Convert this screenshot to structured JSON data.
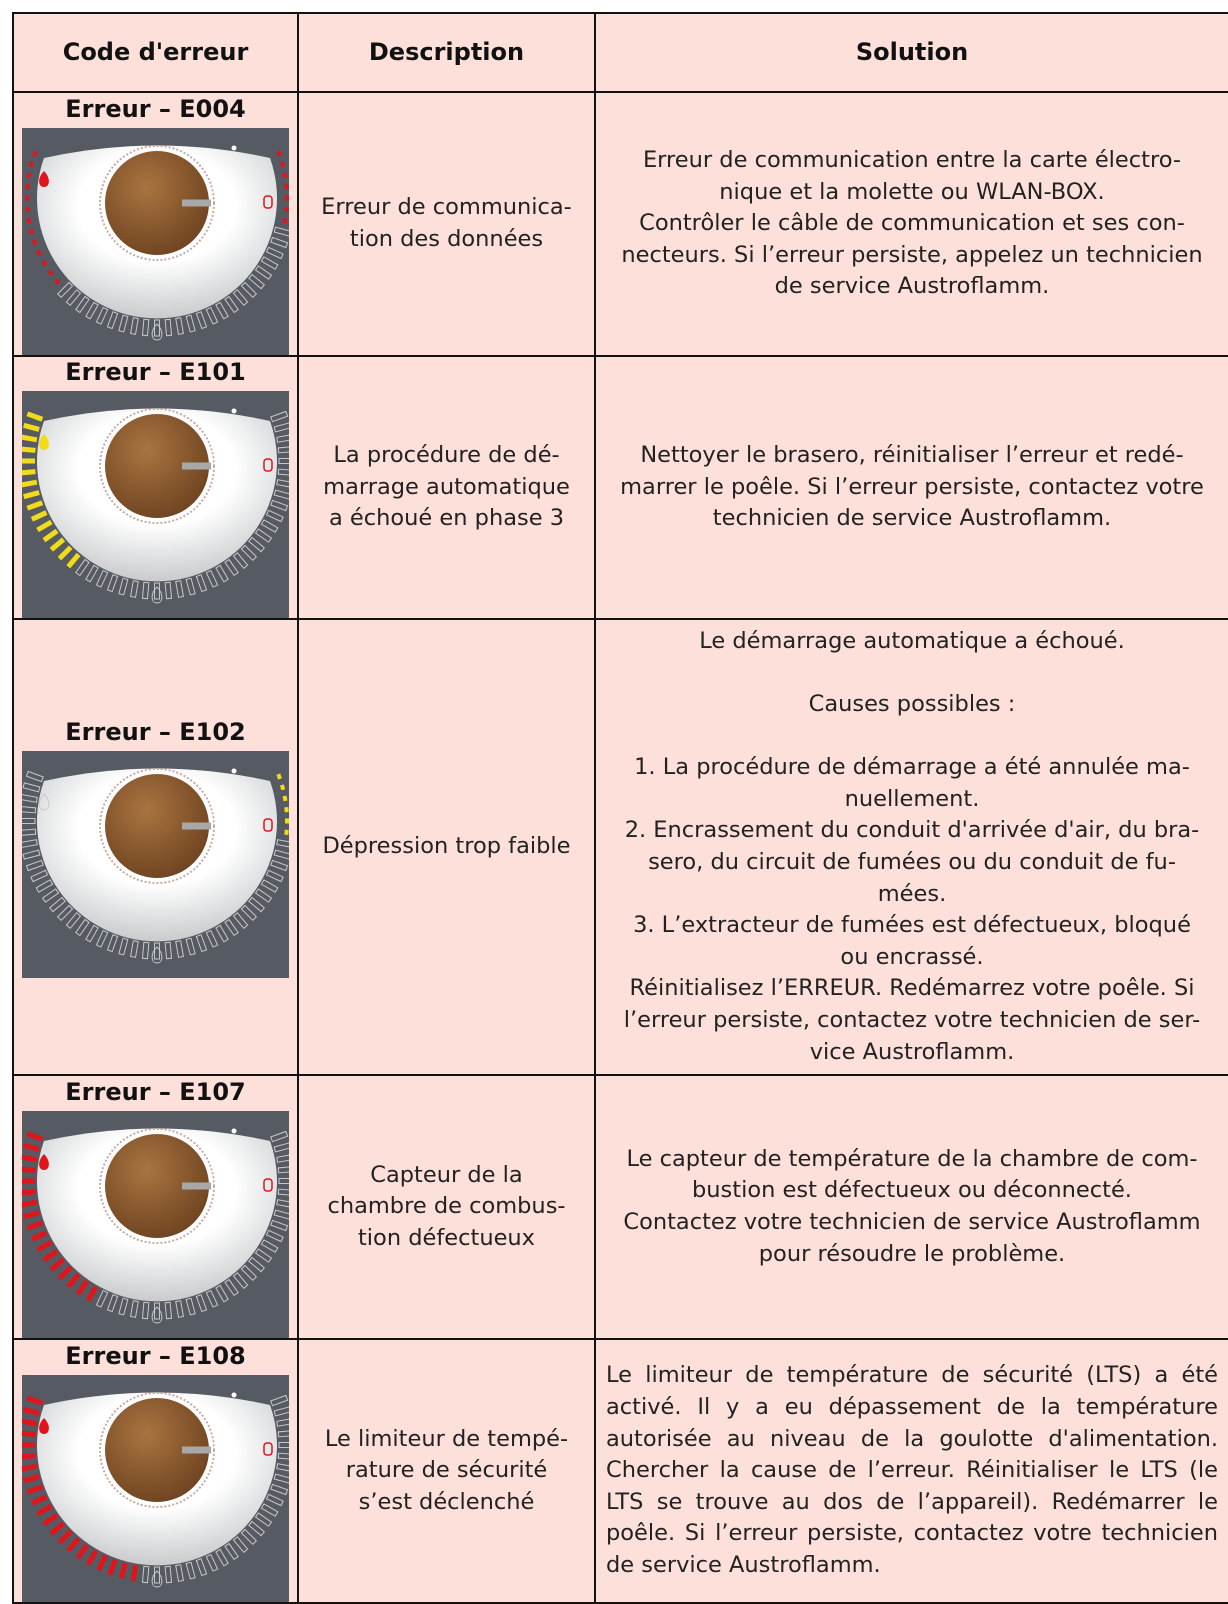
{
  "table": {
    "headers": [
      "Code d'erreur",
      "Description",
      "Solution"
    ],
    "rows": [
      {
        "code": "Erreur – E004",
        "description": [
          "Erreur de communica-",
          "tion des données"
        ],
        "solution": [
          [
            "Erreur de communication entre la carte électro-",
            "nique et la molette ou WLAN-BOX.",
            "Contrôler le câble de communication et ses con-",
            "necteurs. Si l’erreur persiste, appelez un technicien",
            "de service Austroflamm."
          ]
        ]
      },
      {
        "code": "Erreur – E101",
        "description": [
          "La procédure de dé-",
          "marrage automatique",
          "a échoué en phase 3"
        ],
        "solution": [
          [
            "Nettoyer le brasero, réinitialiser l’erreur et redé-",
            "marrer le poêle. Si l’erreur persiste, contactez votre",
            "technicien de service Austroflamm."
          ]
        ]
      },
      {
        "code": "Erreur – E102",
        "description": [
          "Dépression trop faible"
        ],
        "solution": [
          [
            "Le démarrage automatique a échoué."
          ],
          [
            "Causes possibles :"
          ],
          [
            "1. La procédure de démarrage a été annulée ma-",
            "nuellement.",
            "2. Encrassement du conduit d'arrivée d'air, du bra-",
            "sero, du circuit de fumées ou du conduit de fu-",
            "mées.",
            "3. L’extracteur de fumées est défectueux, bloqué",
            "ou encrassé.",
            "Réinitialisez l’ERREUR. Redémarrez votre poêle. Si",
            "l’erreur persiste, contactez votre technicien de ser-",
            "vice Austroflamm."
          ]
        ]
      },
      {
        "code": "Erreur – E107",
        "description": [
          "Capteur de la",
          "chambre de combus-",
          "tion défectueux"
        ],
        "solution": [
          [
            "Le capteur de température de la chambre de com-",
            "bustion est défectueux ou déconnecté.",
            "Contactez votre technicien de service Austroflamm",
            "pour résoudre le problème."
          ]
        ]
      },
      {
        "code": "Erreur – E108",
        "description": [
          "Le limiteur de tempé-",
          "rature de sécurité",
          "s’est déclenché"
        ],
        "solution": [
          [
            "Le limiteur de température de sécurité (LTS) a été",
            "activé. Il y a eu dépassement de la température",
            "autorisée au niveau de la goulotte d'alimentation.",
            "Chercher la cause de l’erreur. Réinitialiser le LTS (le",
            "LTS se trouve au dos de l’appareil). Redémarrer le",
            "poêle. Si l’erreur persiste, contactez votre technicien",
            "de service Austroflamm."
          ]
        ]
      }
    ]
  }
}
